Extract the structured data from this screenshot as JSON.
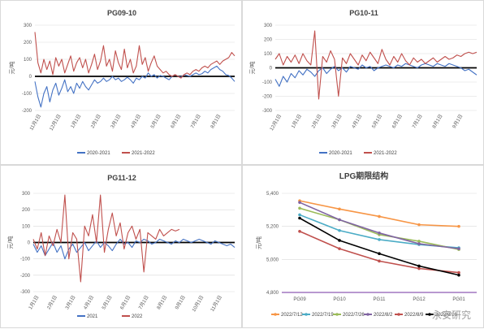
{
  "chart_data": [
    {
      "type": "line",
      "title": "PG09-10",
      "ylabel": "元/吨",
      "ylim": [
        -200,
        300
      ],
      "yticks": [
        -200,
        -100,
        0,
        100,
        200,
        300
      ],
      "grid": true,
      "legend": "bottom",
      "x_ticks": [
        "11月1日",
        "12月1日",
        "1月1日",
        "2月1日",
        "3月1日",
        "4月1日",
        "5月1日",
        "6月1日",
        "7月1日",
        "8月1日"
      ],
      "series": [
        {
          "name": "2020-2021",
          "color": "#4472c4",
          "values": [
            -30,
            -120,
            -180,
            -100,
            -60,
            -150,
            -80,
            -40,
            -110,
            -70,
            -20,
            -90,
            -60,
            -100,
            -40,
            -70,
            -30,
            -60,
            -80,
            -50,
            -20,
            -40,
            -30,
            -10,
            -30,
            -20,
            0,
            -20,
            -10,
            -30,
            -20,
            -5,
            -20,
            -40,
            -10,
            -20,
            0,
            -10,
            20,
            0,
            10,
            -10,
            5,
            0,
            -10,
            -20,
            0,
            10,
            0,
            -5,
            10,
            5,
            0,
            10,
            20,
            10,
            15,
            30,
            20,
            40,
            50,
            60,
            40,
            30,
            10,
            5,
            -10,
            -30
          ]
        },
        {
          "name": "2021-2022",
          "color": "#c0504d",
          "values": [
            260,
            80,
            20,
            100,
            40,
            90,
            10,
            110,
            60,
            100,
            20,
            70,
            120,
            30,
            80,
            110,
            50,
            100,
            20,
            70,
            130,
            40,
            90,
            180,
            60,
            100,
            30,
            150,
            80,
            40,
            160,
            50,
            100,
            20,
            60,
            180,
            70,
            110,
            30,
            80,
            120,
            60,
            40,
            20,
            30,
            10,
            0,
            10,
            0,
            -10,
            10,
            20,
            10,
            30,
            40,
            30,
            50,
            60,
            50,
            70,
            80,
            90,
            70,
            90,
            100,
            110,
            140,
            120
          ]
        }
      ]
    },
    {
      "type": "line",
      "title": "PG10-11",
      "ylabel": "元/吨",
      "ylim": [
        -300,
        300
      ],
      "yticks": [
        -300,
        -200,
        -100,
        0,
        100,
        200,
        300
      ],
      "grid": true,
      "legend": "bottom",
      "x_ticks": [
        "12月1日",
        "1月1日",
        "2月1日",
        "3月1日",
        "4月1日",
        "5月1日",
        "6月1日",
        "7月1日",
        "8月1日",
        "9月1日"
      ],
      "series": [
        {
          "name": "2020-2021",
          "color": "#4472c4",
          "values": [
            -80,
            -130,
            -60,
            -100,
            -40,
            -70,
            -20,
            -50,
            -10,
            -30,
            -60,
            -20,
            0,
            -40,
            -10,
            10,
            -20,
            0,
            -30,
            10,
            0,
            -10,
            20,
            0,
            10,
            -20,
            0,
            10,
            20,
            10,
            0,
            20,
            10,
            30,
            20,
            10,
            0,
            20,
            30,
            20,
            10,
            30,
            20,
            10,
            30,
            20,
            10,
            0,
            -20,
            -10,
            -30,
            -50
          ]
        },
        {
          "name": "2021-2022",
          "color": "#c0504d",
          "values": [
            60,
            100,
            20,
            80,
            40,
            90,
            30,
            100,
            50,
            20,
            260,
            -220,
            80,
            40,
            120,
            60,
            -200,
            70,
            30,
            100,
            60,
            20,
            90,
            50,
            110,
            70,
            30,
            130,
            60,
            20,
            80,
            40,
            100,
            50,
            20,
            70,
            40,
            60,
            30,
            50,
            70,
            40,
            60,
            80,
            60,
            70,
            90,
            80,
            100,
            110,
            100,
            110
          ]
        }
      ]
    },
    {
      "type": "line",
      "title": "PG11-12",
      "ylabel": "元/吨",
      "ylim": [
        -300,
        300
      ],
      "yticks": [
        -300,
        -200,
        -100,
        0,
        100,
        200,
        300
      ],
      "grid": true,
      "legend": "bottom",
      "x_ticks": [
        "1月1日",
        "2月1日",
        "3月1日",
        "4月1日",
        "5月1日",
        "6月1日",
        "7月1日",
        "8月1日",
        "9月1日",
        "10月1日",
        "11月1日"
      ],
      "series": [
        {
          "name": "2021",
          "color": "#4472c4",
          "values": [
            -10,
            -60,
            -20,
            -80,
            -40,
            0,
            -60,
            -20,
            -100,
            -40,
            -10,
            -60,
            -30,
            0,
            -50,
            -20,
            10,
            -30,
            0,
            -20,
            -50,
            -10,
            20,
            -10,
            0,
            -30,
            10,
            0,
            20,
            10,
            -10,
            0,
            20,
            10,
            0,
            -10,
            10,
            0,
            20,
            10,
            0,
            10,
            20,
            10,
            0,
            -10,
            10,
            0,
            -10,
            -20,
            -10,
            -30
          ]
        },
        {
          "name": "2022",
          "color": "#c0504d",
          "values": [
            20,
            -40,
            60,
            -80,
            40,
            -20,
            80,
            0,
            290,
            -100,
            60,
            20,
            -240,
            100,
            40,
            170,
            0,
            290,
            -60,
            80,
            180,
            40,
            120,
            -40,
            60,
            100,
            20,
            80,
            -180,
            60,
            40,
            20,
            80,
            40,
            60,
            80,
            70,
            80
          ]
        }
      ]
    },
    {
      "type": "line",
      "title": "LPG期限结构",
      "ylabel": "元/吨",
      "ylim": [
        4800,
        5400
      ],
      "yticks": [
        4800,
        5000,
        5200,
        5400
      ],
      "grid": true,
      "legend": "bottom",
      "categories": [
        "PG09",
        "PG10",
        "PG11",
        "PG12",
        "PG01"
      ],
      "series": [
        {
          "name": "2022/7/12",
          "color": "#f79646",
          "values": [
            5355,
            5305,
            5260,
            5210,
            5200
          ]
        },
        {
          "name": "2022/7/19",
          "color": "#4bacc6",
          "values": [
            5270,
            5175,
            5120,
            5090,
            5070
          ]
        },
        {
          "name": "2022/7/26",
          "color": "#9bbb59",
          "values": [
            5310,
            5240,
            5150,
            5110,
            5060
          ]
        },
        {
          "name": "2022/8/2",
          "color": "#8064a2",
          "values": [
            5345,
            5240,
            5160,
            5095,
            5065
          ]
        },
        {
          "name": "2022/8/9",
          "color": "#c0504d",
          "values": [
            5170,
            5065,
            4990,
            4945,
            4920
          ]
        },
        {
          "name": "2022/8/16",
          "color": "#000000",
          "values": [
            5250,
            5115,
            5035,
            4960,
            4905
          ]
        }
      ]
    }
  ],
  "watermark": "永安研究"
}
